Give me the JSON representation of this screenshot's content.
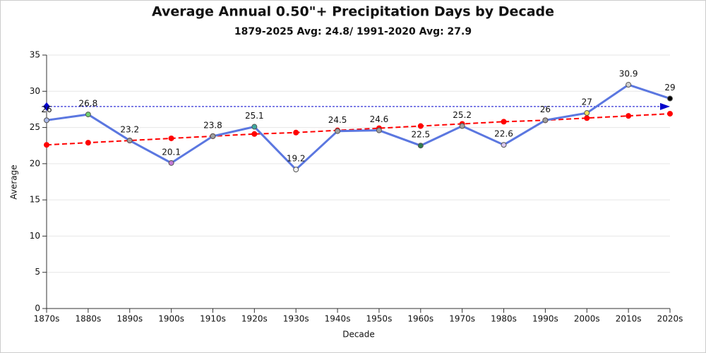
{
  "chart_data": {
    "type": "line",
    "title": "Average Annual 0.50\"+ Precipitation Days by Decade",
    "subtitle": "1879-2025 Avg: 24.8/ 1991-2020 Avg: 27.9",
    "x_label": "Decade",
    "y_label": "Average",
    "categories": [
      "1870s",
      "1880s",
      "1890s",
      "1900s",
      "1910s",
      "1920s",
      "1930s",
      "1940s",
      "1950s",
      "1960s",
      "1970s",
      "1980s",
      "1990s",
      "2000s",
      "2010s",
      "2020s"
    ],
    "values": [
      26,
      26.8,
      23.2,
      20.1,
      23.8,
      25.1,
      19.2,
      24.5,
      24.6,
      22.5,
      25.2,
      22.6,
      26,
      27,
      30.9,
      29
    ],
    "color": "#5b77e0",
    "marker_colors": [
      "#a9b8e8",
      "#6fcf6f",
      "#a0a0a0",
      "#c27ad6",
      "#a0a0a0",
      "#3fa9a0",
      "#f0f0f0",
      "#a0a0a0",
      "#a0a0a0",
      "#2e7d4f",
      "#a0a0a0",
      "#d8c8f0",
      "#a0a0a0",
      "#f0e060",
      "#d0d0d0",
      "#000000"
    ],
    "trend_values": [
      22.6,
      22.9,
      23.2,
      23.5,
      23.8,
      24.1,
      24.3,
      24.6,
      24.9,
      25.2,
      25.5,
      25.8,
      26.0,
      26.3,
      26.6,
      26.9
    ],
    "trend_color": "#ff0000",
    "reference_line": {
      "value": 27.9,
      "color": "#0000cc"
    },
    "ylim": [
      0,
      35
    ],
    "yticks": [
      0,
      5,
      10,
      15,
      20,
      25,
      30,
      35
    ],
    "grid": true
  }
}
